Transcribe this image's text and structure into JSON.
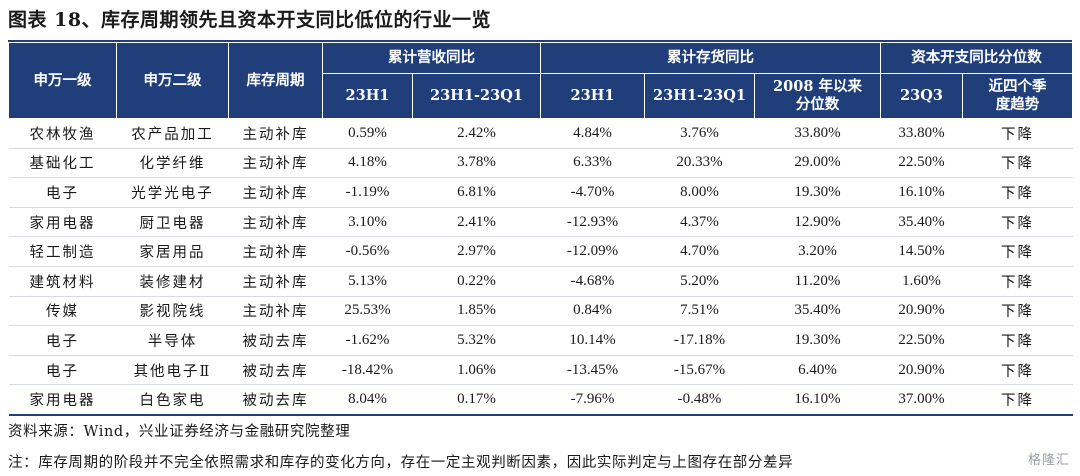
{
  "title": "图表 18、库存周期领先且资本开支同比低位的行业一览",
  "header": {
    "sw1": "申万一级",
    "sw2": "申万二级",
    "cycle": "库存周期",
    "group_revenue": "累计营收同比",
    "group_inventory": "累计存货同比",
    "group_capex": "资本开支同比分位数",
    "rev_23h1": "23H1",
    "rev_chg": "23H1-23Q1",
    "inv_23h1": "23H1",
    "inv_chg": "23H1-23Q1",
    "inv_pct": "2008 年以来 分位数",
    "capex_23q3": "23Q3",
    "capex_trend": "近四个季 度趋势"
  },
  "rows": [
    [
      "农林牧渔",
      "农产品加工",
      "主动补库",
      "0.59%",
      "2.42%",
      "4.84%",
      "3.76%",
      "33.80%",
      "33.80%",
      "下降"
    ],
    [
      "基础化工",
      "化学纤维",
      "主动补库",
      "4.18%",
      "3.78%",
      "6.33%",
      "20.33%",
      "29.00%",
      "22.50%",
      "下降"
    ],
    [
      "电子",
      "光学光电子",
      "主动补库",
      "-1.19%",
      "6.81%",
      "-4.70%",
      "8.00%",
      "19.30%",
      "16.10%",
      "下降"
    ],
    [
      "家用电器",
      "厨卫电器",
      "主动补库",
      "3.10%",
      "2.41%",
      "-12.93%",
      "4.37%",
      "12.90%",
      "35.40%",
      "下降"
    ],
    [
      "轻工制造",
      "家居用品",
      "主动补库",
      "-0.56%",
      "2.97%",
      "-12.09%",
      "4.70%",
      "3.20%",
      "14.50%",
      "下降"
    ],
    [
      "建筑材料",
      "装修建材",
      "主动补库",
      "5.13%",
      "0.22%",
      "-4.68%",
      "5.20%",
      "11.20%",
      "1.60%",
      "下降"
    ],
    [
      "传媒",
      "影视院线",
      "主动补库",
      "25.53%",
      "1.85%",
      "0.84%",
      "7.51%",
      "35.40%",
      "20.90%",
      "下降"
    ],
    [
      "电子",
      "半导体",
      "被动去库",
      "-1.62%",
      "5.32%",
      "10.14%",
      "-17.18%",
      "19.30%",
      "22.50%",
      "下降"
    ],
    [
      "电子",
      "其他电子Ⅱ",
      "被动去库",
      "-18.42%",
      "1.06%",
      "-13.45%",
      "-15.67%",
      "6.40%",
      "20.90%",
      "下降"
    ],
    [
      "家用电器",
      "白色家电",
      "被动去库",
      "8.04%",
      "0.17%",
      "-7.96%",
      "-0.48%",
      "16.10%",
      "37.00%",
      "下降"
    ]
  ],
  "source": "资料来源：Wind，兴业证券经济与金融研究院整理",
  "remark": "注：库存周期的阶段并不完全依照需求和库存的变化方向，存在一定主观判断因素，因此实际判定与上图存在部分差异",
  "watermark": "格隆汇",
  "colors": {
    "header_bg": "#1f3e7a",
    "header_text": "#ffffff"
  }
}
